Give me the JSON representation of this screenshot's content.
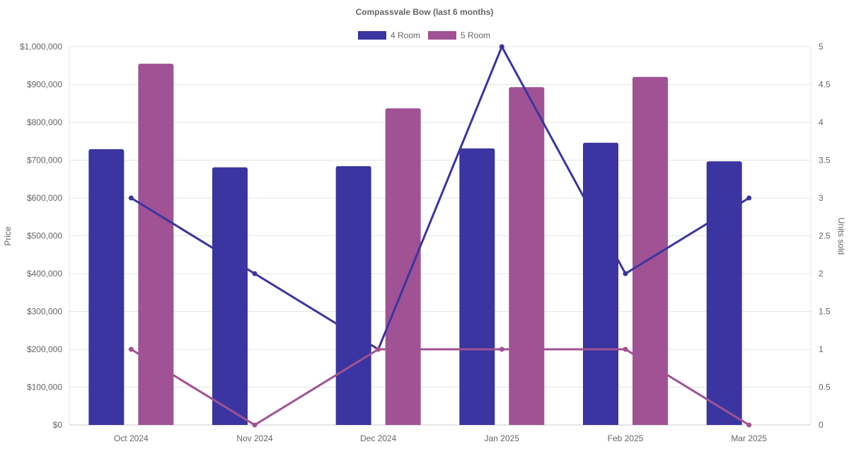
{
  "chart_data": {
    "type": "bar",
    "title": "Compassvale Bow (last 6 months)",
    "categories": [
      "Oct 2024",
      "Nov 2024",
      "Dec 2024",
      "Jan 2025",
      "Feb 2025",
      "Mar 2025"
    ],
    "ylabel": "Price",
    "y2label": "Units sold",
    "ylim": [
      0,
      1000000
    ],
    "y2lim": [
      0,
      5
    ],
    "yticks": [
      "$0",
      "$100,000",
      "$200,000",
      "$300,000",
      "$400,000",
      "$500,000",
      "$600,000",
      "$700,000",
      "$800,000",
      "$900,000",
      "$1,000,000"
    ],
    "y2ticks": [
      "0",
      "0.5",
      "1",
      "1.5",
      "2",
      "2.5",
      "3",
      "3.5",
      "4",
      "4.5",
      "5"
    ],
    "legend_position": "top",
    "grid": true,
    "series": [
      {
        "name": "4 Room",
        "color": "#3a35a0",
        "price": [
          729000,
          681000,
          684000,
          731000,
          746000,
          697000
        ],
        "units": [
          3,
          2,
          1,
          5,
          2,
          3
        ]
      },
      {
        "name": "5 Room",
        "color": "#a05294",
        "price": [
          955000,
          null,
          837000,
          893000,
          920000,
          null
        ],
        "units": [
          1,
          0,
          1,
          1,
          1,
          0
        ]
      }
    ]
  }
}
